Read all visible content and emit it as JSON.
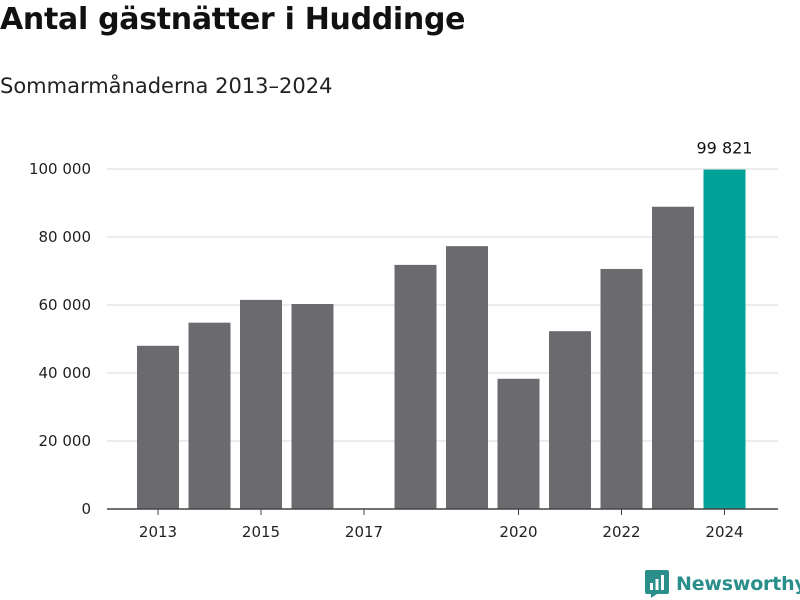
{
  "title": "Antal gästnätter i Huddinge",
  "subtitle": "Sommarmånaderna 2013–2024",
  "brand": "Newsworthy",
  "colors": {
    "bar": "#6b6a6e",
    "highlight": "#00a196",
    "grid": "#d9d9d9",
    "brand": "#2a8f8a"
  },
  "chart_data": {
    "type": "bar",
    "title": "Antal gästnätter i Huddinge",
    "subtitle": "Sommarmånaderna 2013–2024",
    "categories": [
      "2013",
      "2014",
      "2015",
      "2016",
      "2017",
      "2018",
      "2019",
      "2020",
      "2021",
      "2022",
      "2023",
      "2024"
    ],
    "values": [
      48000,
      54800,
      61500,
      60300,
      null,
      71800,
      77300,
      38300,
      52300,
      70600,
      88900,
      99821
    ],
    "x_tick_labels": [
      "2013",
      "",
      "2015",
      "",
      "2017",
      "",
      "",
      "2020",
      "",
      "2022",
      "",
      "2024"
    ],
    "y_ticks": [
      0,
      20000,
      40000,
      60000,
      80000,
      100000
    ],
    "y_tick_labels": [
      "0",
      "20 000",
      "40 000",
      "60 000",
      "80 000",
      "100 000"
    ],
    "ylim": [
      0,
      100000
    ],
    "highlight_index": 11,
    "data_labels": [
      {
        "index": 11,
        "text": "99 821"
      }
    ],
    "grid": true,
    "legend": "none"
  }
}
